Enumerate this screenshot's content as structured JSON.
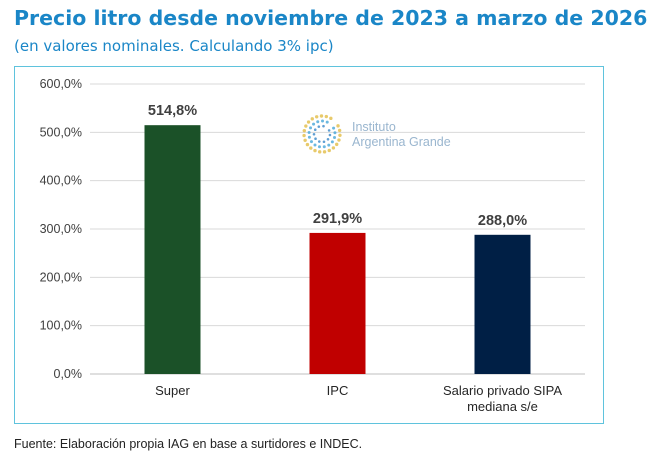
{
  "header": {
    "title": "Precio litro desde noviembre de 2023 a marzo de 2026",
    "subtitle": "(en valores nominales. Calculando 3% ipc)"
  },
  "logo": {
    "line1": "Instituto",
    "line2": "Argentina Grande"
  },
  "footer": {
    "source": "Fuente: Elaboración propia IAG en base a surtidores e INDEC."
  },
  "colors": {
    "accent": "#1a86c7",
    "frame": "#5fc3dd"
  },
  "chart_data": {
    "type": "bar",
    "categories": [
      [
        "Super"
      ],
      [
        "IPC"
      ],
      [
        "Salario privado SIPA",
        "mediana s/e"
      ]
    ],
    "values": [
      514.8,
      291.9,
      288.0
    ],
    "data_labels": [
      "514,8%",
      "291,9%",
      "288,0%"
    ],
    "bar_colors": [
      "#1b5128",
      "#c00000",
      "#001f45"
    ],
    "ylim": [
      0,
      600
    ],
    "yticks": [
      0,
      100,
      200,
      300,
      400,
      500,
      600
    ],
    "ytick_labels": [
      "0,0%",
      "100,0%",
      "200,0%",
      "300,0%",
      "400,0%",
      "500,0%",
      "600,0%"
    ],
    "grid": true,
    "legend": "none"
  }
}
